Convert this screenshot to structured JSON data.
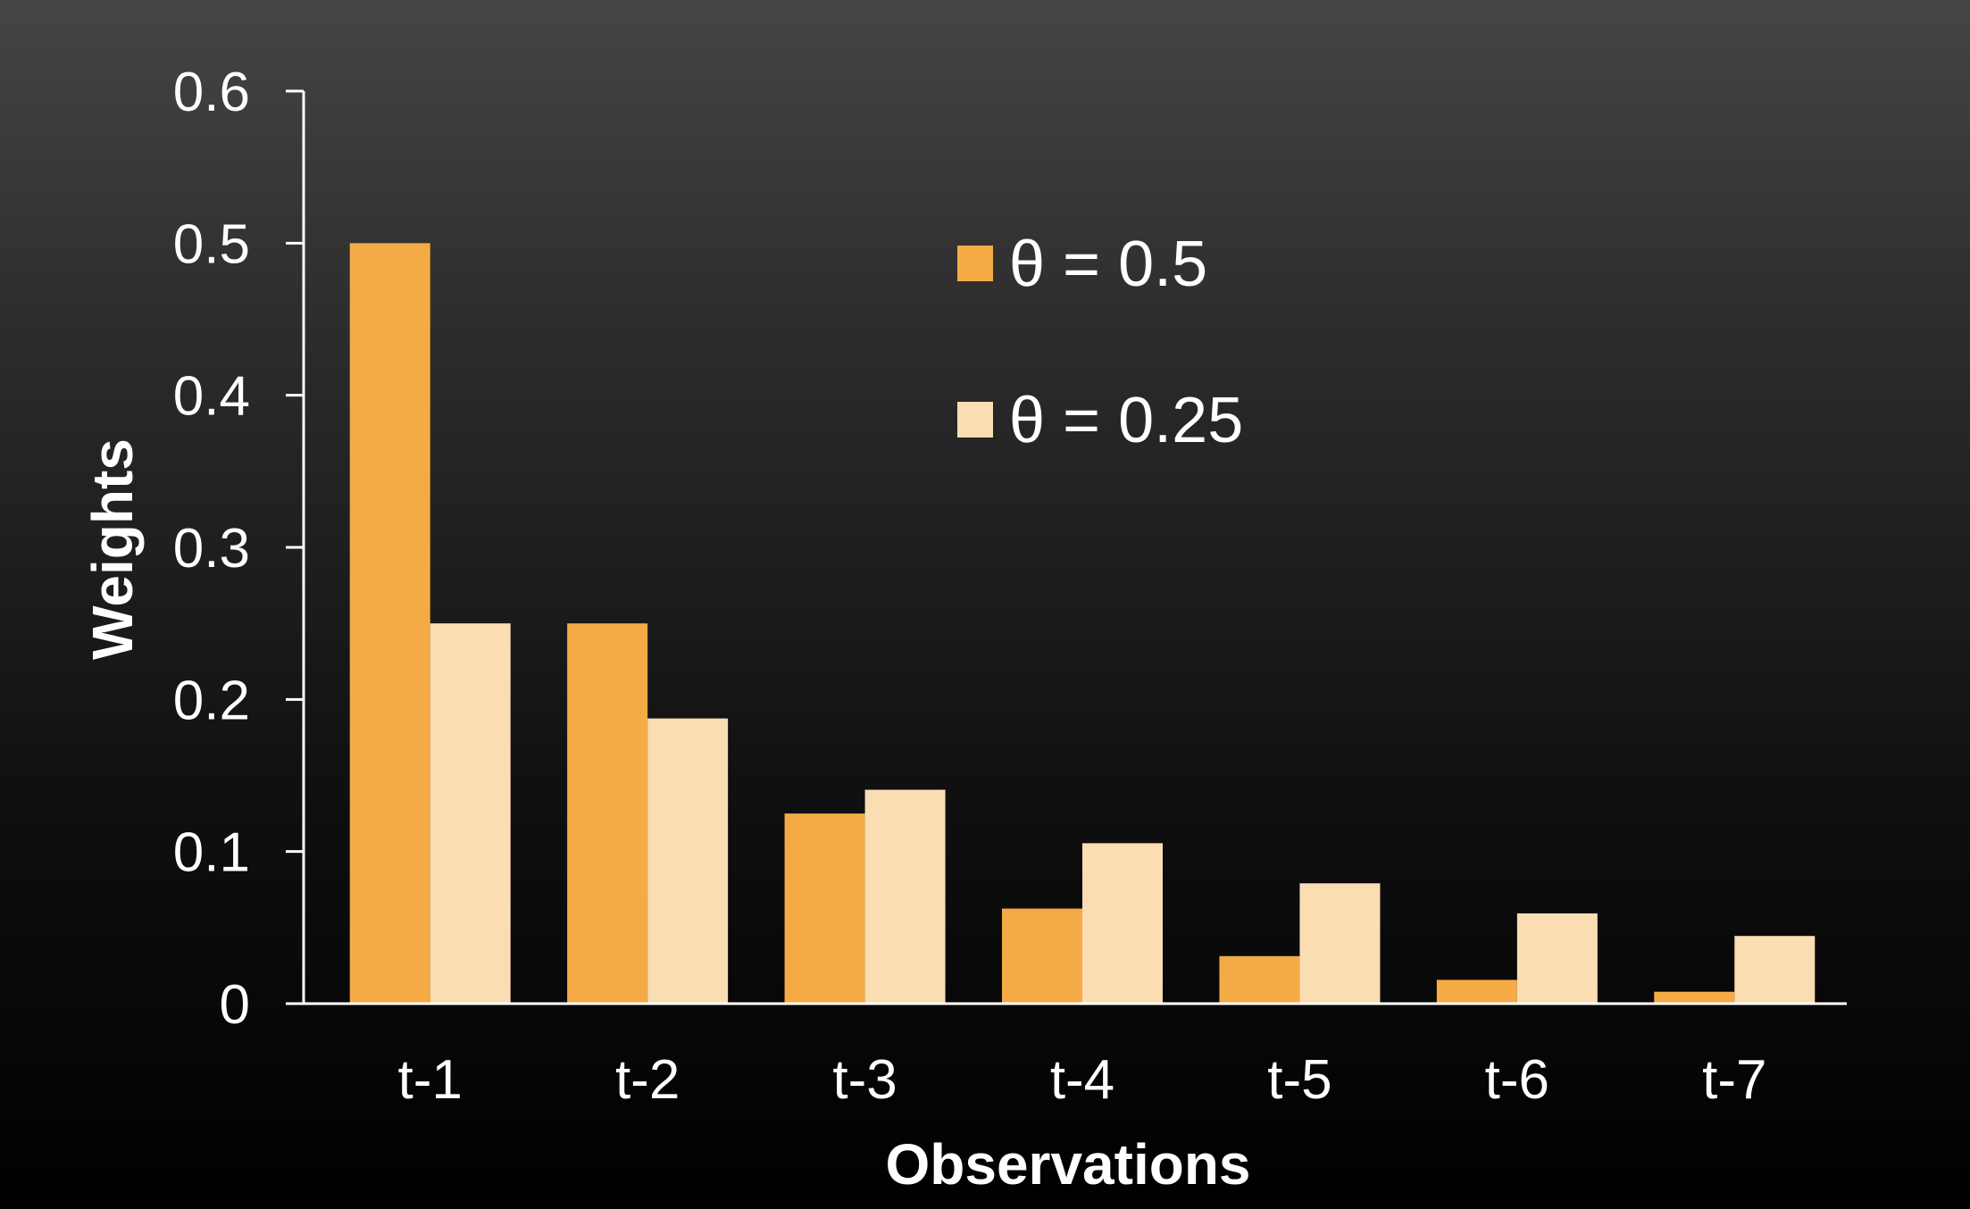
{
  "chart_data": {
    "type": "bar",
    "title": "",
    "xlabel": "Observations",
    "ylabel": "Weights",
    "categories": [
      "t-1",
      "t-2",
      "t-3",
      "t-4",
      "t-5",
      "t-6",
      "t-7"
    ],
    "series": [
      {
        "name": "θ = 0.5",
        "color": "#F5AB45",
        "values": [
          0.5,
          0.25,
          0.125,
          0.0625,
          0.03125,
          0.015625,
          0.0078125
        ]
      },
      {
        "name": "θ = 0.25",
        "color": "#FBDDB4",
        "values": [
          0.25,
          0.1875,
          0.140625,
          0.10546875,
          0.0791015625,
          0.059326171875,
          0.04449462890625
        ]
      }
    ],
    "ylim": [
      0,
      0.6
    ],
    "yticks": [
      "0",
      "0.1",
      "0.2",
      "0.3",
      "0.4",
      "0.5",
      "0.6"
    ],
    "grid": false,
    "legend_position": "top-center"
  }
}
